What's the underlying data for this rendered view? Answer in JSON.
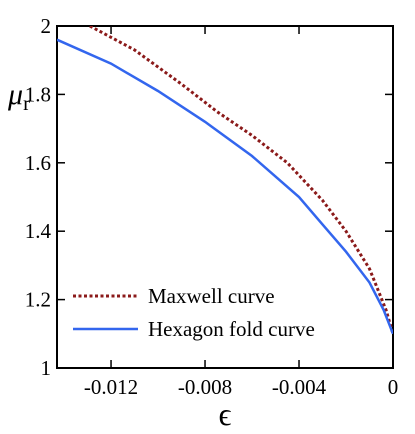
{
  "chart_data": {
    "type": "line",
    "xlabel": "ϵ",
    "ylabel": "μ",
    "ylabel_subscript": "r",
    "xlim": [
      -0.0143,
      0.0
    ],
    "ylim": [
      1.0,
      2.0
    ],
    "x_ticks": [
      {
        "value": -0.012,
        "label": "-0.012"
      },
      {
        "value": -0.008,
        "label": "-0.008"
      },
      {
        "value": -0.004,
        "label": "-0.004"
      },
      {
        "value": 0,
        "label": "0"
      }
    ],
    "y_ticks": [
      {
        "value": 1.0,
        "label": "1"
      },
      {
        "value": 1.2,
        "label": "1.2"
      },
      {
        "value": 1.4,
        "label": "1.4"
      },
      {
        "value": 1.6,
        "label": "1.6"
      },
      {
        "value": 1.8,
        "label": "1.8"
      },
      {
        "value": 2.0,
        "label": "2"
      }
    ],
    "legend_position": "bottom-left",
    "grid": false,
    "series": [
      {
        "name": "Maxwell curve",
        "color": "#8b1a1a",
        "style": "dotted",
        "x": [
          -0.0129,
          -0.011,
          -0.009,
          -0.0075,
          -0.006,
          -0.0045,
          -0.003,
          -0.002,
          -0.001,
          -0.0003,
          0.0
        ],
        "y": [
          2.0,
          1.93,
          1.83,
          1.75,
          1.68,
          1.6,
          1.49,
          1.4,
          1.29,
          1.17,
          1.1
        ]
      },
      {
        "name": "Hexagon fold curve",
        "color": "#3366ee",
        "style": "solid",
        "x": [
          -0.0143,
          -0.012,
          -0.01,
          -0.008,
          -0.006,
          -0.004,
          -0.003,
          -0.002,
          -0.001,
          -0.0004,
          0.0
        ],
        "y": [
          1.96,
          1.89,
          1.81,
          1.72,
          1.62,
          1.5,
          1.42,
          1.34,
          1.25,
          1.17,
          1.1
        ]
      }
    ]
  }
}
